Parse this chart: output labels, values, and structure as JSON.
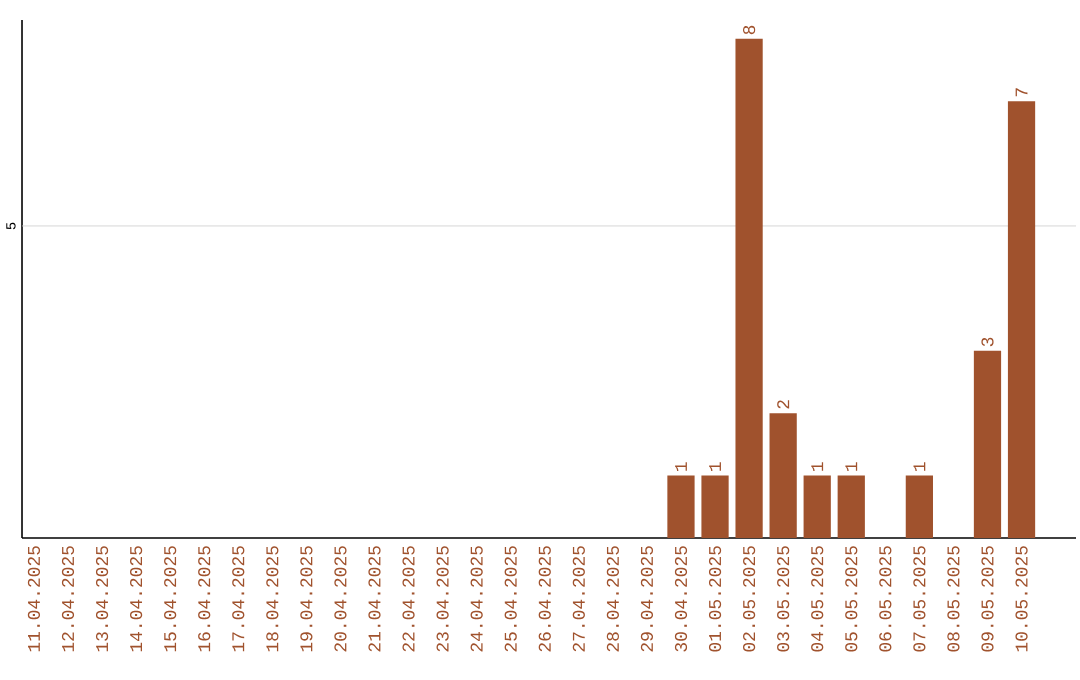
{
  "chart_data": {
    "type": "bar",
    "categories": [
      "11.04.2025",
      "12.04.2025",
      "13.04.2025",
      "14.04.2025",
      "15.04.2025",
      "16.04.2025",
      "17.04.2025",
      "18.04.2025",
      "19.04.2025",
      "20.04.2025",
      "21.04.2025",
      "22.04.2025",
      "23.04.2025",
      "24.04.2025",
      "25.04.2025",
      "26.04.2025",
      "27.04.2025",
      "28.04.2025",
      "29.04.2025",
      "30.04.2025",
      "01.05.2025",
      "02.05.2025",
      "03.05.2025",
      "04.05.2025",
      "05.05.2025",
      "06.05.2025",
      "07.05.2025",
      "08.05.2025",
      "09.05.2025",
      "10.05.2025"
    ],
    "values": [
      null,
      null,
      null,
      null,
      null,
      null,
      null,
      null,
      null,
      null,
      null,
      null,
      null,
      null,
      null,
      null,
      null,
      null,
      null,
      1,
      1,
      8,
      2,
      1,
      1,
      null,
      1,
      null,
      3,
      7
    ],
    "value_labels": [
      null,
      null,
      null,
      null,
      null,
      null,
      null,
      null,
      null,
      null,
      null,
      null,
      null,
      null,
      null,
      null,
      null,
      null,
      null,
      "1",
      "1",
      "8",
      "2",
      "1",
      "1",
      null,
      "1",
      null,
      "3",
      "7"
    ],
    "color": "#a0522d",
    "ylim": [
      0,
      8.3
    ],
    "ref_lines": [
      {
        "axis": "y",
        "value": 5,
        "label": "5",
        "color": "#cccccc"
      }
    ]
  }
}
